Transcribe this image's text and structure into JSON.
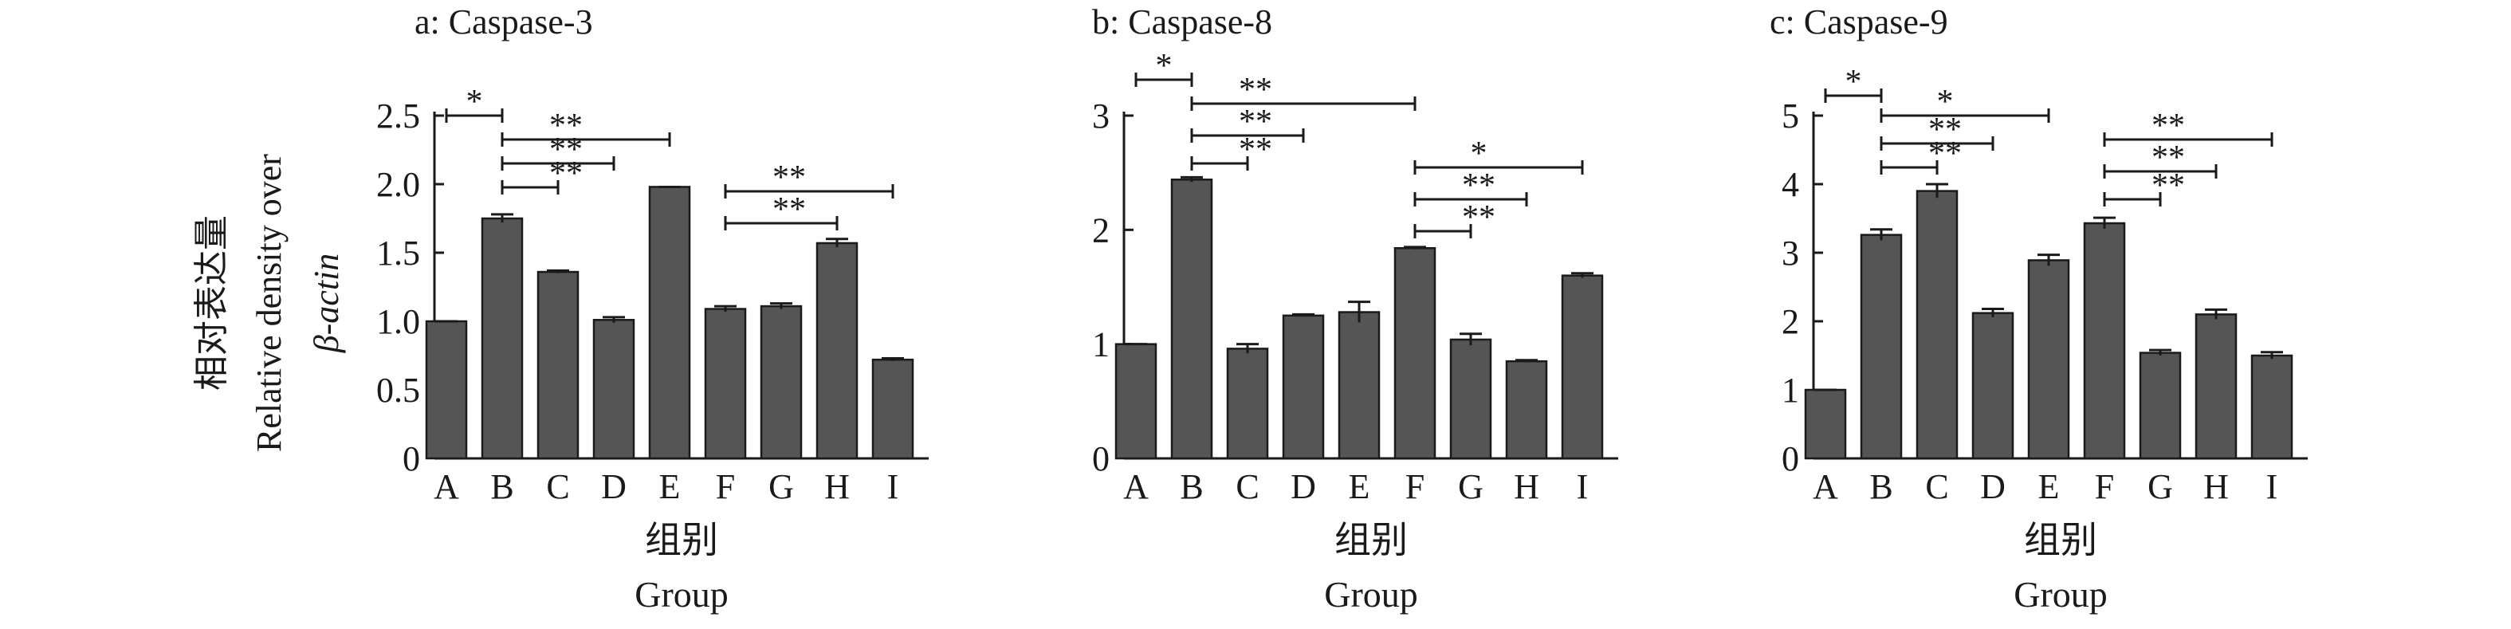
{
  "figure": {
    "ylabel_lines": [
      "相对表达量",
      "Relative density over",
      "β-actin"
    ]
  },
  "chart_data": [
    {
      "type": "bar",
      "title": "a: Caspase-3",
      "xlabel_lines": [
        "组别",
        "Group"
      ],
      "ylabel": "相对表达量 Relative density over β-actin",
      "categories": [
        "A",
        "B",
        "C",
        "D",
        "E",
        "F",
        "G",
        "H",
        "I"
      ],
      "values": [
        1.0,
        1.75,
        1.36,
        1.01,
        1.98,
        1.09,
        1.11,
        1.57,
        0.72
      ],
      "errors": [
        0.0,
        0.03,
        0.01,
        0.02,
        0.0,
        0.02,
        0.02,
        0.03,
        0.01
      ],
      "ylim": [
        0,
        2.5
      ],
      "yticks": [
        "0",
        "0.5",
        "1.0",
        "1.5",
        "2.0",
        "2.5"
      ],
      "bar_color": "#555555",
      "significance": [
        {
          "from": "A",
          "to": "B",
          "label": "*"
        },
        {
          "from": "B",
          "to": "E",
          "label": "**"
        },
        {
          "from": "B",
          "to": "D",
          "label": "**"
        },
        {
          "from": "B",
          "to": "C",
          "label": "**"
        },
        {
          "from": "F",
          "to": "I",
          "label": "**"
        },
        {
          "from": "F",
          "to": "H",
          "label": "**"
        }
      ]
    },
    {
      "type": "bar",
      "title": "b: Caspase-8",
      "xlabel_lines": [
        "组别",
        "Group"
      ],
      "categories": [
        "A",
        "B",
        "C",
        "D",
        "E",
        "F",
        "G",
        "H",
        "I"
      ],
      "values": [
        1.0,
        2.44,
        0.96,
        1.25,
        1.28,
        1.84,
        1.04,
        0.85,
        1.6
      ],
      "errors": [
        0.0,
        0.02,
        0.04,
        0.01,
        0.09,
        0.01,
        0.05,
        0.01,
        0.02
      ],
      "ylim": [
        0,
        3
      ],
      "yticks": [
        "0",
        "1",
        "2",
        "3"
      ],
      "bar_color": "#555555",
      "significance": [
        {
          "from": "A",
          "to": "B",
          "label": "*"
        },
        {
          "from": "B",
          "to": "F",
          "label": "**"
        },
        {
          "from": "B",
          "to": "D",
          "label": "**"
        },
        {
          "from": "B",
          "to": "C",
          "label": "**"
        },
        {
          "from": "F",
          "to": "I",
          "label": "*"
        },
        {
          "from": "F",
          "to": "H",
          "label": "**"
        },
        {
          "from": "F",
          "to": "G",
          "label": "**"
        }
      ]
    },
    {
      "type": "bar",
      "title": "c: Caspase-9",
      "xlabel_lines": [
        "组别",
        "Group"
      ],
      "categories": [
        "A",
        "B",
        "C",
        "D",
        "E",
        "F",
        "G",
        "H",
        "I"
      ],
      "values": [
        1.0,
        3.26,
        3.9,
        2.12,
        2.89,
        3.43,
        1.54,
        2.1,
        1.5
      ],
      "errors": [
        0.0,
        0.08,
        0.1,
        0.06,
        0.08,
        0.08,
        0.04,
        0.07,
        0.05
      ],
      "ylim": [
        0,
        5
      ],
      "yticks": [
        "0",
        "1",
        "2",
        "3",
        "4",
        "5"
      ],
      "bar_color": "#555555",
      "significance": [
        {
          "from": "A",
          "to": "B",
          "label": "*"
        },
        {
          "from": "B",
          "to": "E",
          "label": "*"
        },
        {
          "from": "B",
          "to": "D",
          "label": "**"
        },
        {
          "from": "B",
          "to": "C",
          "label": "**"
        },
        {
          "from": "F",
          "to": "I",
          "label": "**"
        },
        {
          "from": "F",
          "to": "H",
          "label": "**"
        },
        {
          "from": "F",
          "to": "G",
          "label": "**"
        }
      ]
    }
  ]
}
